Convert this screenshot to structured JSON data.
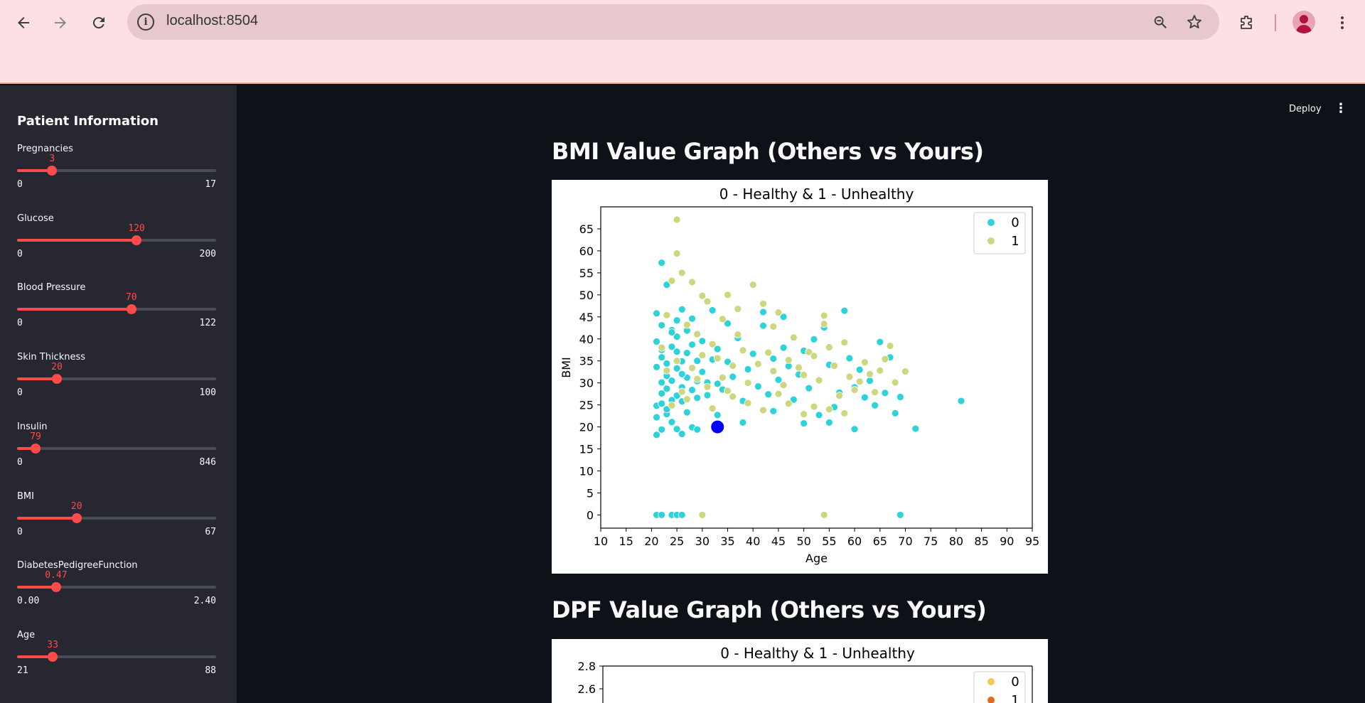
{
  "browser": {
    "url": "localhost:8504",
    "icons": [
      "back-arrow-icon",
      "forward-arrow-icon",
      "reload-icon",
      "site-info-icon",
      "zoom-icon",
      "bookmark-star-icon",
      "extensions-icon",
      "profile-icon",
      "menu-kebab-icon"
    ]
  },
  "sidebar": {
    "title": "Patient Information",
    "sliders": [
      {
        "label": "Pregnancies",
        "value": "3",
        "min": "0",
        "max": "17",
        "fraction": 0.176
      },
      {
        "label": "Glucose",
        "value": "120",
        "min": "0",
        "max": "200",
        "fraction": 0.6
      },
      {
        "label": "Blood Pressure",
        "value": "70",
        "min": "0",
        "max": "122",
        "fraction": 0.574
      },
      {
        "label": "Skin Thickness",
        "value": "20",
        "min": "0",
        "max": "100",
        "fraction": 0.2
      },
      {
        "label": "Insulin",
        "value": "79",
        "min": "0",
        "max": "846",
        "fraction": 0.093
      },
      {
        "label": "BMI",
        "value": "20",
        "min": "0",
        "max": "67",
        "fraction": 0.299
      },
      {
        "label": "DiabetesPedigreeFunction",
        "value": "0.47",
        "min": "0.00",
        "max": "2.40",
        "fraction": 0.196
      },
      {
        "label": "Age",
        "value": "33",
        "min": "21",
        "max": "88",
        "fraction": 0.179
      }
    ]
  },
  "header": {
    "deploy_label": "Deploy"
  },
  "sections": {
    "bmi_heading": "BMI Value Graph (Others vs Yours)",
    "dpf_heading": "DPF Value Graph (Others vs Yours)"
  },
  "chart_data": [
    {
      "type": "scatter",
      "title": "0 - Healthy & 1 - Unhealthy",
      "xlabel": "Age",
      "ylabel": "BMI",
      "xlim": [
        10,
        95
      ],
      "ylim": [
        -3,
        70
      ],
      "xticks": [
        "10",
        "15",
        "20",
        "25",
        "30",
        "35",
        "40",
        "45",
        "50",
        "55",
        "60",
        "65",
        "70",
        "75",
        "80",
        "85",
        "90",
        "95"
      ],
      "yticks": [
        "0",
        "5",
        "10",
        "15",
        "20",
        "25",
        "30",
        "35",
        "40",
        "45",
        "50",
        "55",
        "60",
        "65"
      ],
      "legend": {
        "position": "top-right",
        "entries": [
          "0",
          "1"
        ]
      },
      "colors": {
        "0": "#2ed3da",
        "1": "#ced77f",
        "yours": "#0000ff"
      },
      "series": [
        {
          "name": "0",
          "points": [
            [
              21,
              24.8
            ],
            [
              22,
              30.1
            ],
            [
              21,
              33.6
            ],
            [
              22,
              25.3
            ],
            [
              23,
              28.7
            ],
            [
              21,
              39.4
            ],
            [
              22,
              35.8
            ],
            [
              24,
              30.5
            ],
            [
              25,
              27.1
            ],
            [
              21,
              22.2
            ],
            [
              22,
              43.1
            ],
            [
              23,
              31.6
            ],
            [
              24,
              38.2
            ],
            [
              25,
              33.3
            ],
            [
              26,
              29.0
            ],
            [
              27,
              36.8
            ],
            [
              22,
              19.4
            ],
            [
              23,
              22.9
            ],
            [
              24,
              26.1
            ],
            [
              25,
              40.5
            ],
            [
              26,
              34.9
            ],
            [
              27,
              31.2
            ],
            [
              28,
              28.4
            ],
            [
              29,
              35.0
            ],
            [
              21,
              18.2
            ],
            [
              22,
              27.6
            ],
            [
              23,
              34.4
            ],
            [
              24,
              42.0
            ],
            [
              25,
              37.1
            ],
            [
              26,
              25.8
            ],
            [
              27,
              23.3
            ],
            [
              28,
              38.7
            ],
            [
              29,
              30.4
            ],
            [
              30,
              32.5
            ],
            [
              31,
              27.2
            ],
            [
              32,
              35.3
            ],
            [
              33,
              29.8
            ],
            [
              21,
              45.8
            ],
            [
              22,
              57.3
            ],
            [
              23,
              52.3
            ],
            [
              24,
              41.5
            ],
            [
              25,
              44.2
            ],
            [
              26,
              46.7
            ],
            [
              22,
              37.5
            ],
            [
              23,
              24.0
            ],
            [
              24,
              21.1
            ],
            [
              25,
              19.5
            ],
            [
              26,
              32.0
            ],
            [
              27,
              41.9
            ],
            [
              28,
              44.6
            ],
            [
              29,
              26.6
            ],
            [
              30,
              39.5
            ],
            [
              31,
              30.1
            ],
            [
              32,
              46.5
            ],
            [
              33,
              37.7
            ],
            [
              34,
              28.5
            ],
            [
              35,
              34.8
            ],
            [
              36,
              31.4
            ],
            [
              37,
              40.2
            ],
            [
              38,
              25.9
            ],
            [
              39,
              33.1
            ],
            [
              40,
              36.6
            ],
            [
              41,
              29.2
            ],
            [
              42,
              46.1
            ],
            [
              43,
              27.4
            ],
            [
              44,
              35.5
            ],
            [
              45,
              30.7
            ],
            [
              46,
              38.0
            ],
            [
              47,
              33.8
            ],
            [
              48,
              26.2
            ],
            [
              49,
              31.9
            ],
            [
              50,
              37.3
            ],
            [
              51,
              28.8
            ],
            [
              52,
              39.9
            ],
            [
              53,
              22.7
            ],
            [
              54,
              42.6
            ],
            [
              55,
              34.1
            ],
            [
              56,
              24.5
            ],
            [
              57,
              27.8
            ],
            [
              58,
              46.4
            ],
            [
              59,
              35.6
            ],
            [
              60,
              29.0
            ],
            [
              61,
              33.0
            ],
            [
              62,
              26.7
            ],
            [
              63,
              30.5
            ],
            [
              64,
              24.9
            ],
            [
              65,
              39.3
            ],
            [
              66,
              27.7
            ],
            [
              67,
              35.8
            ],
            [
              68,
              23.1
            ],
            [
              69,
              26.8
            ],
            [
              72,
              19.6
            ],
            [
              81,
              25.9
            ],
            [
              21,
              0
            ],
            [
              22,
              0
            ],
            [
              24,
              0
            ],
            [
              25,
              0
            ],
            [
              26,
              0
            ],
            [
              69,
              0
            ],
            [
              60,
              19.5
            ],
            [
              55,
              21.0
            ],
            [
              50,
              20.8
            ],
            [
              44,
              23.6
            ],
            [
              38,
              21.0
            ],
            [
              33,
              22.7
            ],
            [
              28,
              19.9
            ],
            [
              29,
              19.4
            ],
            [
              26,
              18.4
            ],
            [
              35,
              43.5
            ],
            [
              42,
              43.0
            ],
            [
              46,
              45.0
            ]
          ]
        },
        {
          "name": "1",
          "points": [
            [
              25,
              67.1
            ],
            [
              25,
              59.4
            ],
            [
              24,
              53.2
            ],
            [
              26,
              55.0
            ],
            [
              28,
              52.9
            ],
            [
              30,
              49.8
            ],
            [
              31,
              48.5
            ],
            [
              35,
              50.0
            ],
            [
              37,
              46.8
            ],
            [
              40,
              52.3
            ],
            [
              42,
              48.0
            ],
            [
              45,
              46.0
            ],
            [
              23,
              45.4
            ],
            [
              27,
              43.2
            ],
            [
              29,
              41.1
            ],
            [
              32,
              38.8
            ],
            [
              33,
              35.6
            ],
            [
              34,
              31.2
            ],
            [
              36,
              33.9
            ],
            [
              38,
              37.4
            ],
            [
              39,
              30.0
            ],
            [
              41,
              34.3
            ],
            [
              43,
              36.9
            ],
            [
              44,
              32.7
            ],
            [
              46,
              29.5
            ],
            [
              47,
              35.2
            ],
            [
              49,
              33.5
            ],
            [
              50,
              31.8
            ],
            [
              51,
              37.0
            ],
            [
              52,
              36.1
            ],
            [
              53,
              30.6
            ],
            [
              54,
              45.3
            ],
            [
              54,
              43.4
            ],
            [
              55,
              38.1
            ],
            [
              56,
              33.9
            ],
            [
              57,
              27.1
            ],
            [
              58,
              39.2
            ],
            [
              59,
              31.4
            ],
            [
              60,
              28.4
            ],
            [
              61,
              30.3
            ],
            [
              62,
              34.7
            ],
            [
              63,
              32.0
            ],
            [
              64,
              27.9
            ],
            [
              65,
              32.8
            ],
            [
              66,
              35.4
            ],
            [
              67,
              38.4
            ],
            [
              68,
              30.1
            ],
            [
              70,
              32.6
            ],
            [
              48,
              40.3
            ],
            [
              44,
              42.8
            ],
            [
              37,
              41.0
            ],
            [
              34,
              44.5
            ],
            [
              30,
              36.3
            ],
            [
              28,
              33.4
            ],
            [
              26,
              28.0
            ],
            [
              24,
              24.9
            ],
            [
              22,
              38.0
            ],
            [
              23,
              32.8
            ],
            [
              25,
              35.0
            ],
            [
              27,
              26.3
            ],
            [
              29,
              30.9
            ],
            [
              31,
              29.1
            ],
            [
              32,
              24.2
            ],
            [
              35,
              28.2
            ],
            [
              36,
              26.9
            ],
            [
              39,
              25.4
            ],
            [
              42,
              23.8
            ],
            [
              45,
              27.5
            ],
            [
              47,
              25.3
            ],
            [
              50,
              22.9
            ],
            [
              52,
              24.6
            ],
            [
              55,
              24.0
            ],
            [
              58,
              23.1
            ],
            [
              30,
              0
            ],
            [
              54,
              0
            ]
          ]
        },
        {
          "name": "Yours",
          "points": [
            [
              33,
              20
            ]
          ]
        }
      ]
    },
    {
      "type": "scatter",
      "title": "0 - Healthy & 1 - Unhealthy",
      "yticks": [
        "2.8",
        "2.6"
      ],
      "legend": {
        "position": "top-right",
        "entries": [
          "0",
          "1"
        ]
      },
      "colors": {
        "0": "#f5c85a",
        "1": "#e06a1e"
      }
    }
  ]
}
